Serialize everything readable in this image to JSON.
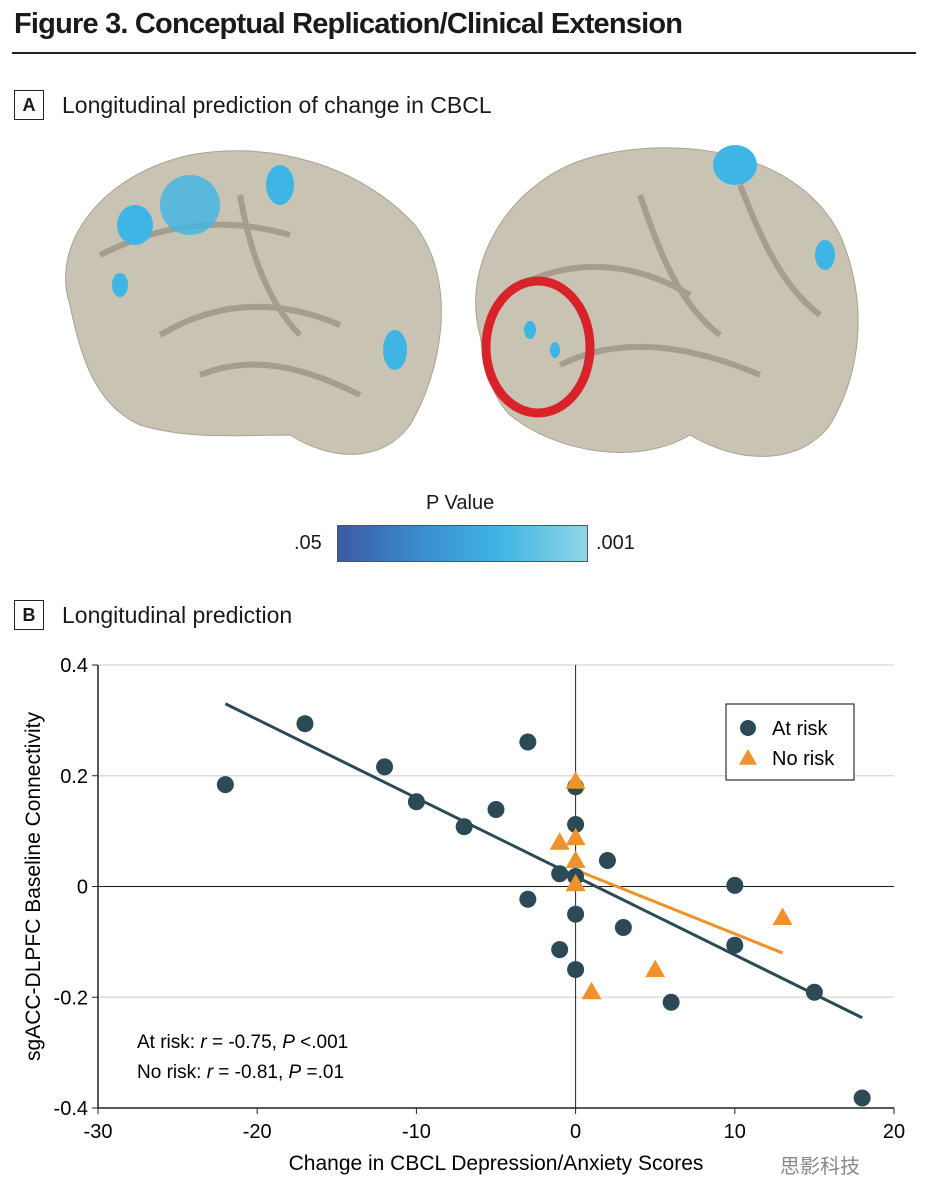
{
  "title": "Figure 3. Conceptual Replication/Clinical Extension",
  "panel_a": {
    "letter": "A",
    "label": "Longitudinal prediction of change in CBCL",
    "pvalue_title": "P Value",
    "pvalue_low": ".05",
    "pvalue_high": ".001",
    "colors": {
      "low": "#3b5aa3",
      "high": "#8dd6e6",
      "highlight": "#d8232a"
    }
  },
  "panel_b": {
    "letter": "B",
    "label": "Longitudinal prediction"
  },
  "watermark": "思影科技",
  "chart_data": {
    "type": "scatter",
    "xlabel": "Change in CBCL Depression/Anxiety Scores",
    "ylabel": "sgACC-DLPFC Baseline Connectivity",
    "xlim": [
      -30,
      20
    ],
    "ylim": [
      -0.4,
      0.4
    ],
    "xticks": [
      -30,
      -20,
      -10,
      0,
      10,
      20
    ],
    "xtick_labels": [
      "-30",
      "-20",
      "-10",
      "0",
      "10",
      "20"
    ],
    "yticks": [
      -0.4,
      -0.2,
      0,
      0.2,
      0.4
    ],
    "ytick_labels": [
      "-0.4",
      "-0.2",
      "0",
      "0.2",
      "0.4"
    ],
    "legend_position": "top-right",
    "series": [
      {
        "name": "At risk",
        "marker": "circle",
        "color": "#2b4a55",
        "points": [
          [
            -22,
            0.184
          ],
          [
            -17,
            0.294
          ],
          [
            -12,
            0.216
          ],
          [
            -10,
            0.153
          ],
          [
            -7,
            0.108
          ],
          [
            -5,
            0.139
          ],
          [
            -3,
            0.261
          ],
          [
            -3,
            -0.023
          ],
          [
            -1,
            0.023
          ],
          [
            -1,
            -0.114
          ],
          [
            0,
            0.18
          ],
          [
            0,
            0.112
          ],
          [
            0,
            0.018
          ],
          [
            0,
            -0.05
          ],
          [
            0,
            -0.15
          ],
          [
            2,
            0.047
          ],
          [
            3,
            -0.074
          ],
          [
            6,
            -0.209
          ],
          [
            10,
            0.002
          ],
          [
            10,
            -0.106
          ],
          [
            15,
            -0.191
          ],
          [
            18,
            -0.382
          ]
        ],
        "fit": [
          [
            -22,
            0.33
          ],
          [
            18,
            -0.237
          ]
        ]
      },
      {
        "name": "No risk",
        "marker": "triangle",
        "color": "#f0922b",
        "points": [
          [
            0,
            0.19
          ],
          [
            -1,
            0.08
          ],
          [
            0,
            0.088
          ],
          [
            0,
            0.047
          ],
          [
            0,
            0.005
          ],
          [
            1,
            -0.19
          ],
          [
            5,
            -0.15
          ],
          [
            13,
            -0.056
          ]
        ],
        "fit": [
          [
            0,
            0.03
          ],
          [
            13,
            -0.12
          ]
        ]
      }
    ],
    "annotations": [
      {
        "group": "At risk",
        "r": "-0.75",
        "P": "<.001",
        "text_prefix": "At risk: ",
        "r_label": "r",
        "p_label": "P"
      },
      {
        "group": "No risk",
        "r": "-0.81",
        "P": "=.01",
        "text_prefix": "No risk: ",
        "r_label": "r",
        "p_label": "P"
      }
    ]
  }
}
